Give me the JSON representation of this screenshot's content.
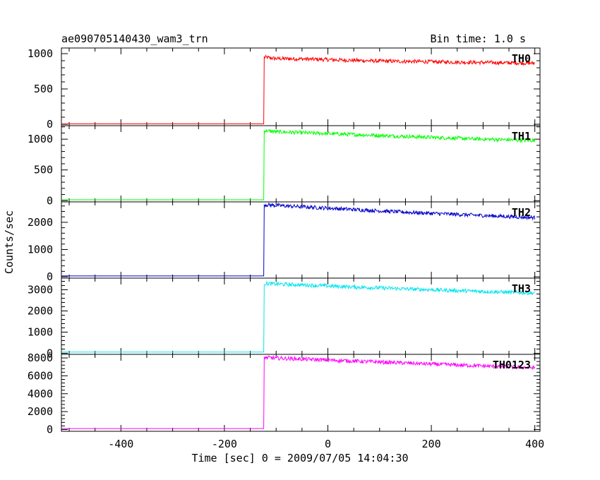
{
  "header": {
    "title": "ae090705140430_wam3_trn",
    "bin_time": "Bin time: 1.0 s"
  },
  "chart_data": {
    "type": "line",
    "title": "ae090705140430_wam3_trn",
    "xlabel": "Time [sec] 0 = 2009/07/05 14:04:30",
    "ylabel": "Counts/sec",
    "xlim": [
      -515,
      410
    ],
    "x_ticks": [
      -400,
      -200,
      0,
      200,
      400
    ],
    "grid": false,
    "bin_seconds": 1.0,
    "panels": [
      {
        "name": "TH0",
        "color": "#ff0000",
        "ylim": [
          -20,
          1080
        ],
        "y_ticks": [
          0,
          500,
          1000
        ],
        "points": [
          [
            -515,
            5
          ],
          [
            -124,
            5
          ],
          [
            -123,
            950
          ],
          [
            -100,
            930
          ],
          [
            -50,
            925
          ],
          [
            0,
            915
          ],
          [
            50,
            905
          ],
          [
            100,
            895
          ],
          [
            150,
            890
          ],
          [
            200,
            885
          ],
          [
            250,
            880
          ],
          [
            300,
            875
          ],
          [
            350,
            870
          ],
          [
            400,
            865
          ]
        ]
      },
      {
        "name": "TH1",
        "color": "#00ff00",
        "ylim": [
          -20,
          1220
        ],
        "y_ticks": [
          0,
          500,
          1000
        ],
        "points": [
          [
            -515,
            15
          ],
          [
            -124,
            15
          ],
          [
            -123,
            1140
          ],
          [
            -100,
            1120
          ],
          [
            -50,
            1105
          ],
          [
            0,
            1090
          ],
          [
            50,
            1075
          ],
          [
            100,
            1060
          ],
          [
            150,
            1045
          ],
          [
            200,
            1030
          ],
          [
            250,
            1015
          ],
          [
            300,
            1000
          ],
          [
            350,
            990
          ],
          [
            400,
            980
          ]
        ]
      },
      {
        "name": "TH2",
        "color": "#0000cc",
        "ylim": [
          -50,
          2750
        ],
        "y_ticks": [
          0,
          1000,
          2000
        ],
        "points": [
          [
            -515,
            30
          ],
          [
            -124,
            30
          ],
          [
            -123,
            2650
          ],
          [
            -100,
            2620
          ],
          [
            -50,
            2570
          ],
          [
            0,
            2520
          ],
          [
            50,
            2470
          ],
          [
            100,
            2420
          ],
          [
            150,
            2370
          ],
          [
            200,
            2330
          ],
          [
            250,
            2290
          ],
          [
            300,
            2250
          ],
          [
            350,
            2210
          ],
          [
            400,
            2170
          ]
        ]
      },
      {
        "name": "TH3",
        "color": "#00e5ee",
        "ylim": [
          -50,
          3550
        ],
        "y_ticks": [
          0,
          1000,
          2000,
          3000
        ],
        "points": [
          [
            -515,
            60
          ],
          [
            -124,
            60
          ],
          [
            -123,
            3300
          ],
          [
            -100,
            3270
          ],
          [
            -50,
            3230
          ],
          [
            0,
            3180
          ],
          [
            50,
            3130
          ],
          [
            100,
            3090
          ],
          [
            150,
            3040
          ],
          [
            200,
            3000
          ],
          [
            250,
            2960
          ],
          [
            300,
            2920
          ],
          [
            350,
            2880
          ],
          [
            400,
            2840
          ]
        ]
      },
      {
        "name": "TH0123",
        "color": "#ff00ff",
        "ylim": [
          -200,
          8400
        ],
        "y_ticks": [
          0,
          2000,
          4000,
          6000,
          8000
        ],
        "points": [
          [
            -515,
            110
          ],
          [
            -124,
            110
          ],
          [
            -123,
            8050
          ],
          [
            -100,
            7980
          ],
          [
            -50,
            7870
          ],
          [
            0,
            7760
          ],
          [
            50,
            7650
          ],
          [
            100,
            7540
          ],
          [
            150,
            7430
          ],
          [
            200,
            7320
          ],
          [
            250,
            7210
          ],
          [
            300,
            7100
          ],
          [
            350,
            7000
          ],
          [
            400,
            6900
          ]
        ]
      }
    ]
  }
}
